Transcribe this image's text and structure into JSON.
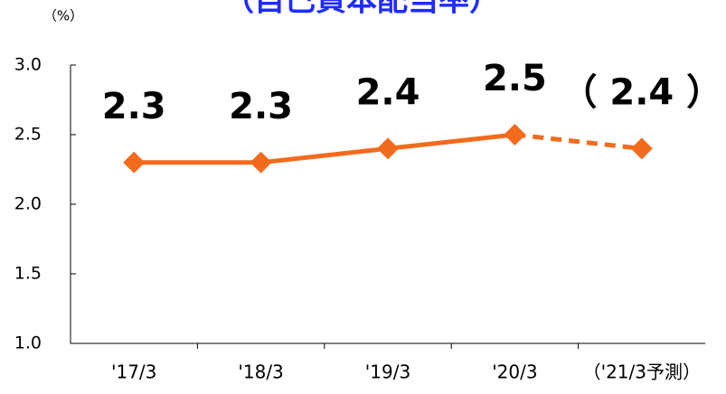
{
  "chart_data": {
    "type": "line",
    "title": "（自己資本配当率）",
    "y_unit": "（%）",
    "categories": [
      "'17/3",
      "'18/3",
      "'19/3",
      "'20/3",
      "（'21/3予測）"
    ],
    "values": [
      2.3,
      2.3,
      2.4,
      2.5,
      2.4
    ],
    "value_labels": [
      "2.3",
      "2.3",
      "2.4",
      "2.5",
      "（ 2.4 ）"
    ],
    "segment_styles": [
      "solid",
      "solid",
      "solid",
      "dashed"
    ],
    "color": "#f26b1d",
    "ylim": [
      1.0,
      3.0
    ],
    "yticks": [
      {
        "value": 1.0,
        "label": "1.0"
      },
      {
        "value": 1.5,
        "label": "1.5"
      },
      {
        "value": 2.0,
        "label": "2.0"
      },
      {
        "value": 2.5,
        "label": "2.5"
      },
      {
        "value": 3.0,
        "label": "3.0"
      }
    ]
  }
}
